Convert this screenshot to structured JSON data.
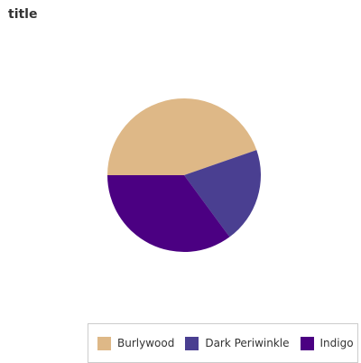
{
  "chart_data": {
    "type": "pie",
    "title": "title",
    "categories": [
      "Burlywood",
      "Dark Periwinkle",
      "Indigo"
    ],
    "values": [
      42,
      19,
      33
    ],
    "colors": [
      "#deb887",
      "#4a3f91",
      "#4b0082"
    ],
    "legend_position": "bottom-right"
  }
}
